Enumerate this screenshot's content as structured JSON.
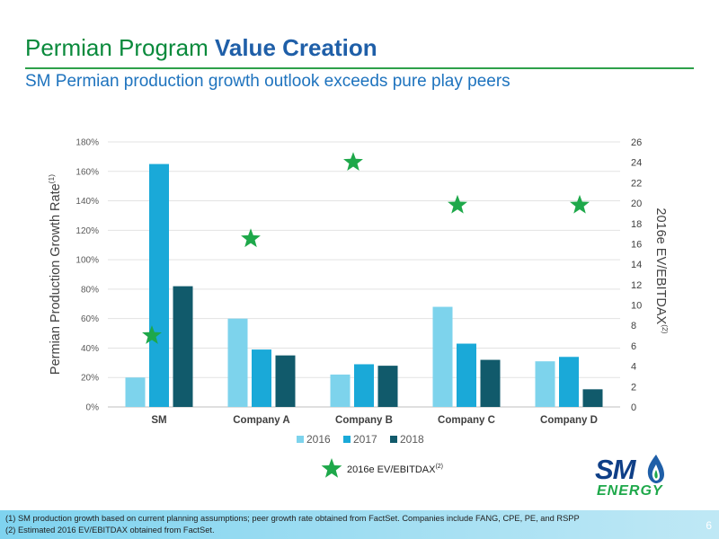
{
  "slide": {
    "title_part1": "Permian Program ",
    "title_part2": "Value Creation",
    "subtitle": "SM Permian production growth outlook exceeds pure play peers",
    "page_number": "6",
    "colors": {
      "title_green": "#0a8a3c",
      "title_blue": "#1f5fa8",
      "subtitle_blue": "#1e73be",
      "footer_blue": "#7fd3ef"
    }
  },
  "chart_data": {
    "type": "bar",
    "categories": [
      "SM",
      "Company A",
      "Company B",
      "Company C",
      "Company D"
    ],
    "series": [
      {
        "name": "2016",
        "values": [
          20,
          60,
          22,
          68,
          31
        ],
        "color": "#7dd3ec"
      },
      {
        "name": "2017",
        "values": [
          165,
          39,
          29,
          43,
          34
        ],
        "color": "#1aa9d8"
      },
      {
        "name": "2018",
        "values": [
          82,
          35,
          28,
          32,
          12
        ],
        "color": "#115a6b"
      }
    ],
    "secondary_series": {
      "name": "2016e EV/EBITDAX",
      "name_superscript": "(2)",
      "marker": "star",
      "color": "#1ea84a",
      "values": [
        7,
        16.5,
        24,
        19.8,
        19.8
      ]
    },
    "ylabel": "Permian Production Growth Rate",
    "ylabel_superscript": "(1)",
    "ylabel_right": "2016e EV/EBITDAX",
    "ylabel_right_superscript": "(2)",
    "ylim": [
      0,
      180
    ],
    "y_ticks": [
      "0%",
      "20%",
      "40%",
      "60%",
      "80%",
      "100%",
      "120%",
      "140%",
      "160%",
      "180%"
    ],
    "y2lim": [
      0,
      26
    ],
    "y2_ticks": [
      "0",
      "2",
      "4",
      "6",
      "8",
      "10",
      "12",
      "14",
      "16",
      "18",
      "20",
      "22",
      "24",
      "26"
    ],
    "grid": true,
    "legend_position": "bottom"
  },
  "footnotes": [
    "(1)   SM production growth based on current planning assumptions; peer growth rate obtained from FactSet. Companies include FANG, CPE, PE, and RSPP",
    "(2)   Estimated 2016 EV/EBITDAX obtained from FactSet."
  ],
  "logo": {
    "line1": "SM",
    "line2": "ENERGY"
  }
}
